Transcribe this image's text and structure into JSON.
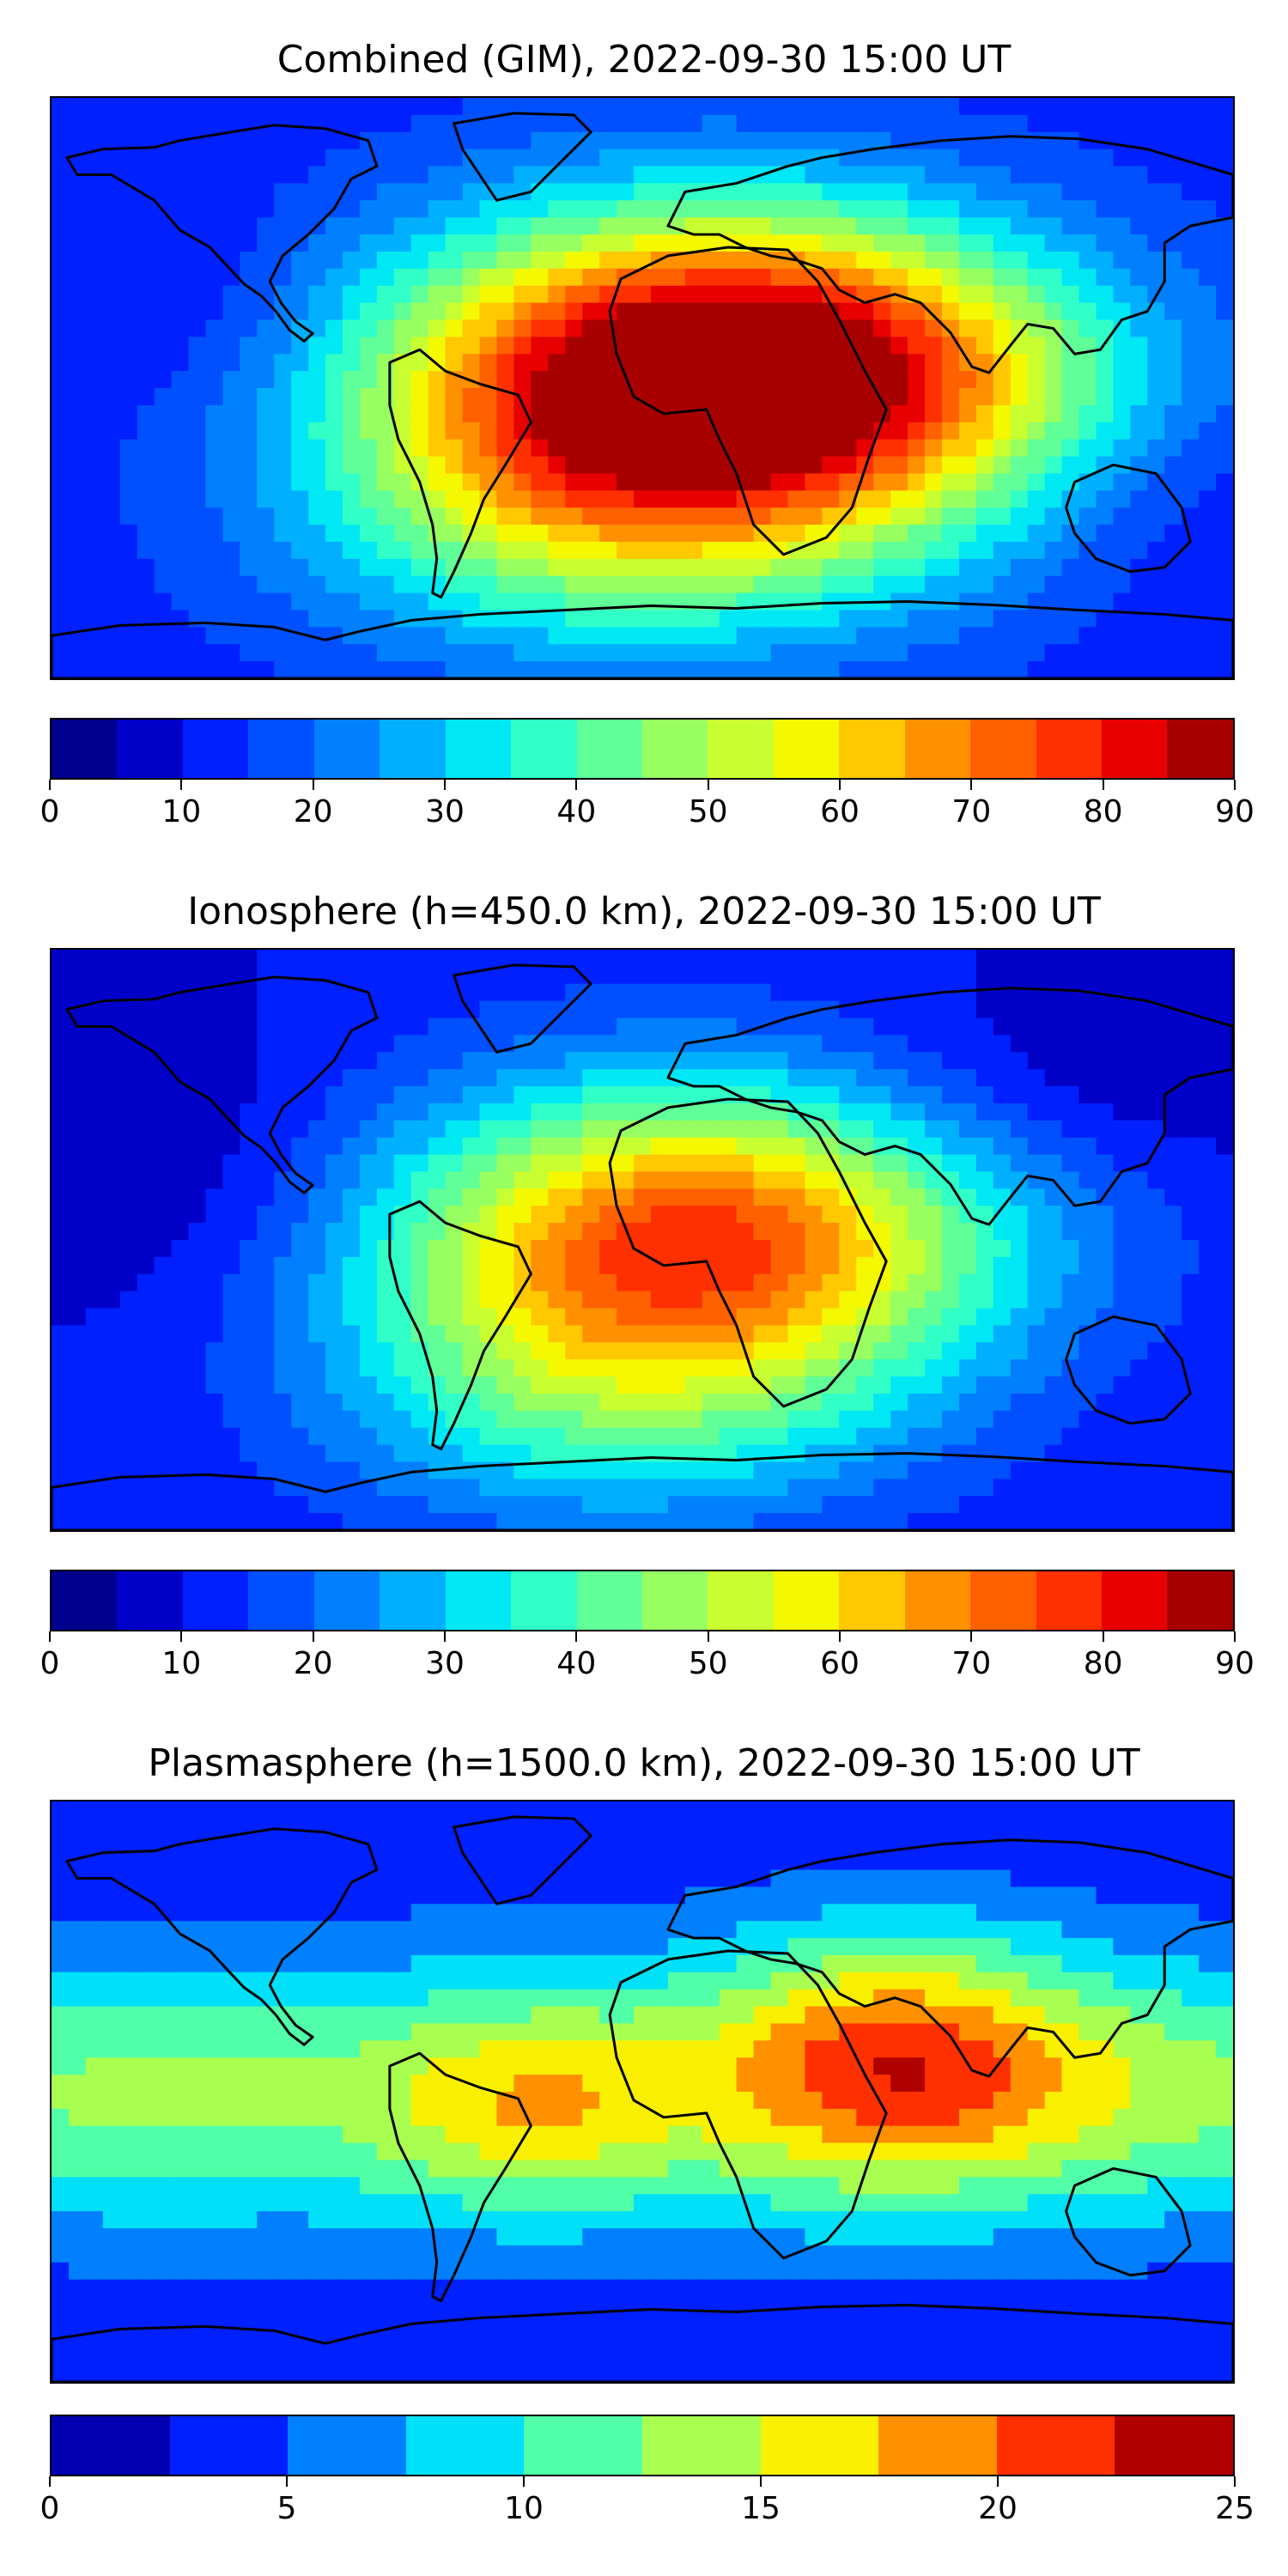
{
  "panels": [
    {
      "title": "Combined (GIM), 2022-09-30 15:00 UT",
      "variant": "combined",
      "colorbar": {
        "min": 0,
        "max": 90,
        "tick_values": [
          0,
          10,
          20,
          30,
          40,
          50,
          60,
          70,
          80,
          90
        ],
        "tick_labels": [
          "0",
          "10",
          "20",
          "30",
          "40",
          "50",
          "60",
          "70",
          "80",
          "90"
        ],
        "level_step": 5,
        "colors": [
          "#00008f",
          "#0000c8",
          "#0020ff",
          "#0050ff",
          "#0080ff",
          "#00b0ff",
          "#00e8f4",
          "#30ffc8",
          "#60ff98",
          "#98ff60",
          "#c8ff30",
          "#f4f800",
          "#ffc800",
          "#ff9000",
          "#ff6000",
          "#ff3000",
          "#e80000",
          "#a80000"
        ]
      }
    },
    {
      "title": "Ionosphere  (h=450.0 km), 2022-09-30 15:00 UT",
      "variant": "ionosphere",
      "colorbar": {
        "min": 0,
        "max": 90,
        "tick_values": [
          0,
          10,
          20,
          30,
          40,
          50,
          60,
          70,
          80,
          90
        ],
        "tick_labels": [
          "0",
          "10",
          "20",
          "30",
          "40",
          "50",
          "60",
          "70",
          "80",
          "90"
        ],
        "level_step": 5,
        "colors": [
          "#00008f",
          "#0000c8",
          "#0020ff",
          "#0050ff",
          "#0080ff",
          "#00b0ff",
          "#00e8f4",
          "#30ffc8",
          "#60ff98",
          "#98ff60",
          "#c8ff30",
          "#f4f800",
          "#ffc800",
          "#ff9000",
          "#ff6000",
          "#ff3000",
          "#e80000",
          "#a80000"
        ]
      }
    },
    {
      "title": "Plasmasphere (h=1500.0 km), 2022-09-30 15:00 UT",
      "variant": "plasmasphere",
      "colorbar": {
        "min": 0,
        "max": 25,
        "tick_values": [
          0,
          5,
          10,
          15,
          20,
          25
        ],
        "tick_labels": [
          "0",
          "5",
          "10",
          "15",
          "20",
          "25"
        ],
        "level_step": 2.5,
        "colors": [
          "#0000b0",
          "#0020ff",
          "#0080ff",
          "#00e0f8",
          "#50ffa8",
          "#a8ff50",
          "#f8f000",
          "#ff9000",
          "#ff3000",
          "#b00000"
        ]
      }
    }
  ]
}
